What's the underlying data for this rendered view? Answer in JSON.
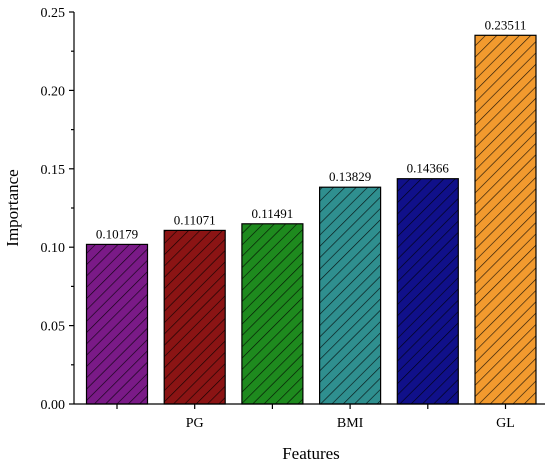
{
  "chart_data": {
    "type": "bar",
    "title": "",
    "xlabel": "Features",
    "ylabel": "Importance",
    "ylim": [
      0,
      0.25
    ],
    "yticks": [
      "0.00",
      "0.05",
      "0.10",
      "0.15",
      "0.20",
      "0.25"
    ],
    "categories": [
      "",
      "PG",
      "",
      "BMI",
      "",
      "GL"
    ],
    "values": [
      0.10179,
      0.11071,
      0.11491,
      0.13829,
      0.14366,
      0.23511
    ],
    "value_labels": [
      "0.10179",
      "0.11071",
      "0.11491",
      "0.13829",
      "0.14366",
      "0.23511"
    ],
    "colors": [
      "#7a1a87",
      "#8b1414",
      "#1e8a1e",
      "#2f8f8f",
      "#10108a",
      "#f29a2e"
    ],
    "hatch": "diagonal",
    "grid": false,
    "legend": "none"
  }
}
